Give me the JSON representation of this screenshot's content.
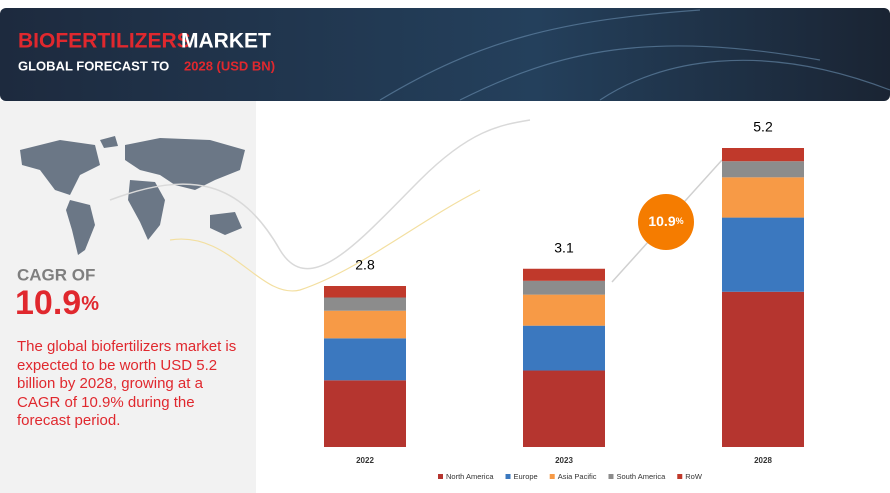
{
  "header": {
    "title_part1": "BIOFERTILIZERS",
    "title_part2": "MARKET",
    "subtitle_part1": "GLOBAL FORECAST TO",
    "subtitle_part2": "2028 (USD BN)"
  },
  "side_panel": {
    "cagr_label": "CAGR OF",
    "cagr_value": "10.9",
    "cagr_unit": "%",
    "description": "The global biofertilizers market is expected to be worth USD 5.2 billion by 2028, growing at a CAGR of 10.9% during the forecast period."
  },
  "chart_data": {
    "type": "stacked_bar",
    "categories": [
      "2022",
      "2023",
      "2028"
    ],
    "series": [
      {
        "name": "North America",
        "color": "#b5352f",
        "values": [
          1.16,
          1.33,
          2.7
        ]
      },
      {
        "name": "Europe",
        "color": "#3b78bf",
        "values": [
          0.73,
          0.78,
          1.29
        ]
      },
      {
        "name": "Asia Pacific",
        "color": "#f79a46",
        "values": [
          0.48,
          0.54,
          0.7
        ]
      },
      {
        "name": "South America",
        "color": "#8c8c8c",
        "values": [
          0.23,
          0.24,
          0.28
        ]
      },
      {
        "name": "RoW",
        "color": "#c0392b",
        "values": [
          0.2,
          0.21,
          0.23
        ]
      }
    ],
    "totals": [
      2.8,
      3.1,
      5.2
    ],
    "annotation": {
      "value": "10.9",
      "unit": "%",
      "color": "#f57c00"
    }
  }
}
